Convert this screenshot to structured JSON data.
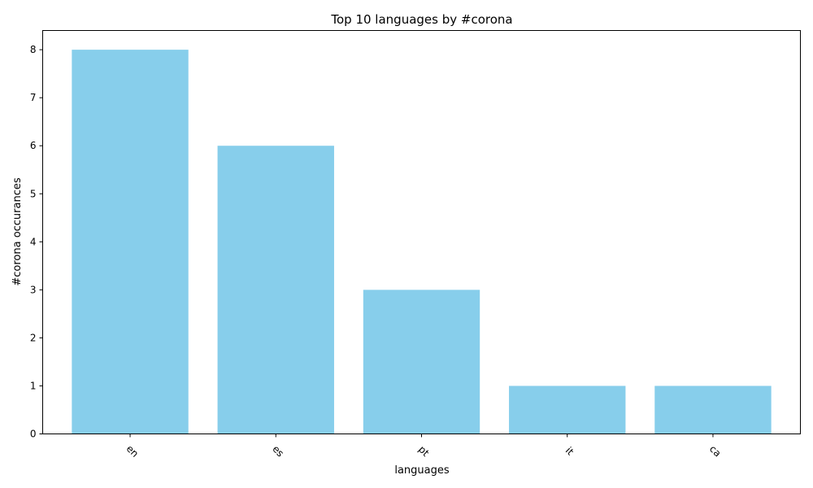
{
  "chart_data": {
    "type": "bar",
    "title": "Top 10 languages by #corona",
    "xlabel": "languages",
    "ylabel": "#corona occurances",
    "categories": [
      "en",
      "es",
      "pt",
      "it",
      "ca"
    ],
    "values": [
      8,
      6,
      3,
      1,
      1
    ],
    "ylim": [
      0,
      8.4
    ],
    "yticks": [
      0,
      1,
      2,
      3,
      4,
      5,
      6,
      7,
      8
    ],
    "bar_color": "#87ceeb",
    "xtick_rotation_deg": 45,
    "grid": false,
    "legend": "none"
  }
}
